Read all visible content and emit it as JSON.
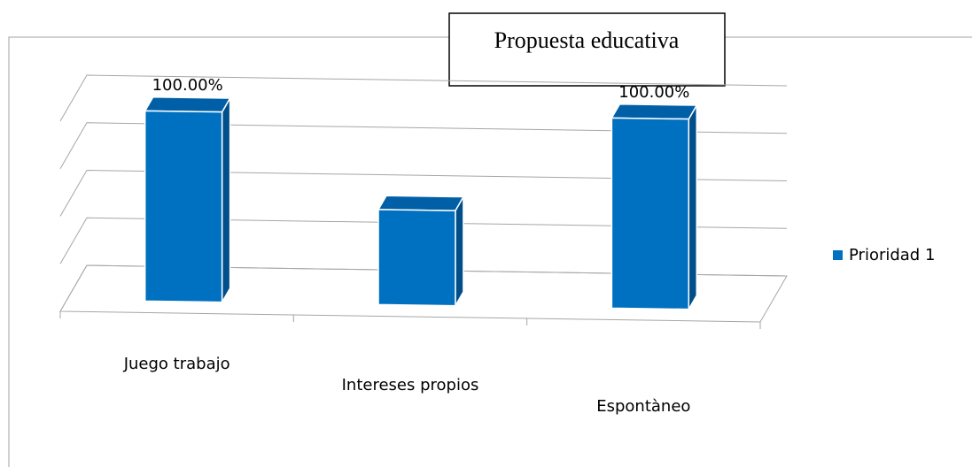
{
  "chart_data": {
    "type": "bar3d",
    "title": "Propuesta educativa",
    "categories": [
      "Juego trabajo",
      "Intereses propios",
      "Espontàneo"
    ],
    "series": [
      {
        "name": "Prioridad 1",
        "color": "#0070c0",
        "values": [
          100,
          50,
          100
        ],
        "value_labels": [
          "100.00%",
          null,
          "100.00%"
        ]
      }
    ],
    "ylim": [
      0,
      100
    ],
    "yticks": [
      0,
      25,
      50,
      75,
      100
    ],
    "grid": true,
    "legend": "right"
  }
}
